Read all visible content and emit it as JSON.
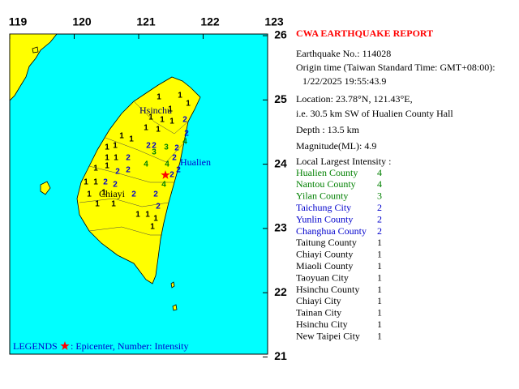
{
  "map": {
    "lon_ticks": [
      "119",
      "120",
      "121",
      "122",
      "123"
    ],
    "lat_ticks": [
      "26",
      "25",
      "24",
      "23",
      "22",
      "21"
    ],
    "place_labels": [
      "Hsinchu",
      "Hualien",
      "Chiayi"
    ],
    "intensity_marks": [
      1,
      1,
      1,
      1,
      1,
      1,
      1,
      2,
      1,
      1,
      1,
      1,
      2,
      4,
      2,
      2,
      3,
      2,
      3,
      1,
      1,
      1,
      1,
      2,
      1,
      1,
      2,
      2,
      4,
      4,
      2,
      2,
      2,
      1,
      1,
      2,
      2,
      4,
      1,
      1,
      2,
      1,
      1,
      2,
      2,
      1,
      1,
      1,
      1
    ],
    "legend_title": "LEGENDS",
    "legend_text": ": Epicenter, Number: Intensity"
  },
  "report": {
    "title": "CWA EARTHQUAKE REPORT",
    "earthquake_no": "Earthquake No.: 114028",
    "origin_time_label": "Origin time (Taiwan Standard Time: GMT+08:00):",
    "origin_time": "1/22/2025 19:55:43.9",
    "location": "Location: 23.78°N, 121.43°E,",
    "location_detail": "i.e. 30.5 km SW of Hualien County Hall",
    "depth": "Depth : 13.5 km",
    "magnitude": "Magnitude(ML): 4.9",
    "intensity_heading": "Local Largest Intensity :",
    "intensities": [
      {
        "area": "Hualien County",
        "intensity": 4
      },
      {
        "area": "Nantou County",
        "intensity": 4
      },
      {
        "area": "Yilan County",
        "intensity": 3
      },
      {
        "area": "Taichung City",
        "intensity": 2
      },
      {
        "area": "Yunlin County",
        "intensity": 2
      },
      {
        "area": "Changhua County",
        "intensity": 2
      },
      {
        "area": "Taitung County",
        "intensity": 1
      },
      {
        "area": "Chiayi County",
        "intensity": 1
      },
      {
        "area": "Miaoli County",
        "intensity": 1
      },
      {
        "area": "Taoyuan City",
        "intensity": 1
      },
      {
        "area": "Hsinchu County",
        "intensity": 1
      },
      {
        "area": "Chiayi City",
        "intensity": 1
      },
      {
        "area": "Tainan City",
        "intensity": 1
      },
      {
        "area": "Hsinchu City",
        "intensity": 1
      },
      {
        "area": "New Taipei City",
        "intensity": 1
      }
    ]
  }
}
